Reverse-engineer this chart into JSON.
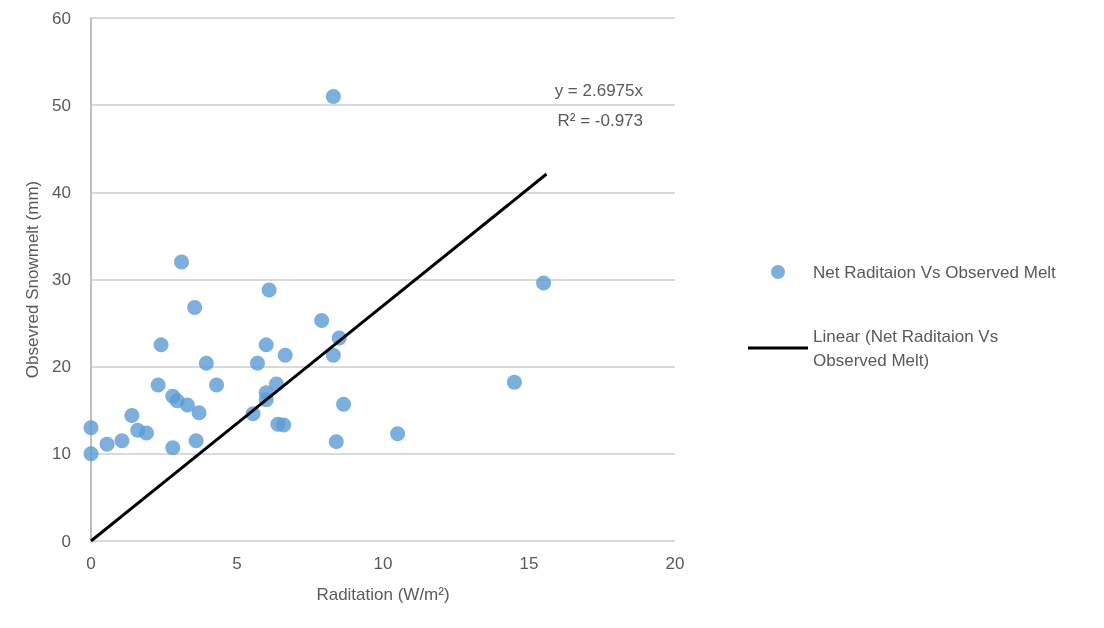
{
  "chart_data": {
    "type": "scatter",
    "xlabel": "Raditation (W/m²)",
    "ylabel": "Obsevred Snowmelt (mm)",
    "x": [
      0,
      0,
      0.55,
      1.06,
      1.4,
      1.6,
      1.9,
      2.3,
      2.4,
      2.8,
      2.8,
      2.95,
      3.1,
      3.3,
      3.7,
      3.55,
      3.6,
      3.95,
      4.3,
      5.55,
      5.7,
      6.0,
      6.1,
      6.0,
      6.0,
      6.35,
      6.4,
      6.6,
      6.65,
      7.9,
      8.3,
      8.5,
      8.3,
      8.4,
      8.65,
      10.5,
      14.5,
      15.5
    ],
    "series": [
      {
        "name": "Net Raditaion Vs Observed Melt",
        "color": "#5b9bd5",
        "values": [
          10.0,
          13.0,
          11.1,
          11.5,
          14.4,
          12.7,
          12.4,
          17.9,
          22.5,
          10.7,
          16.6,
          16.1,
          32.0,
          15.6,
          14.7,
          26.8,
          11.5,
          20.4,
          17.9,
          14.6,
          20.4,
          22.5,
          28.8,
          17.0,
          16.2,
          18.0,
          13.4,
          13.3,
          21.3,
          25.3,
          21.3,
          23.3,
          51.0,
          11.4,
          15.7,
          12.3,
          18.2,
          29.6
        ]
      },
      {
        "name": "Linear (Net Raditaion Vs Observed Melt)",
        "type": "line",
        "marker": "none",
        "color": "#000000",
        "x": [
          0,
          15.6
        ],
        "values": [
          0,
          42.1
        ]
      }
    ],
    "annotations": [
      "y = 2.6975x",
      "R² = -0.973"
    ],
    "xlim": [
      0,
      20
    ],
    "xticks": [
      0,
      5,
      10,
      15,
      20
    ],
    "ylim": [
      0,
      60
    ],
    "yticks": [
      0,
      10,
      20,
      30,
      40,
      50,
      60
    ],
    "grid": "y",
    "legend": "right",
    "marker": "circle"
  }
}
